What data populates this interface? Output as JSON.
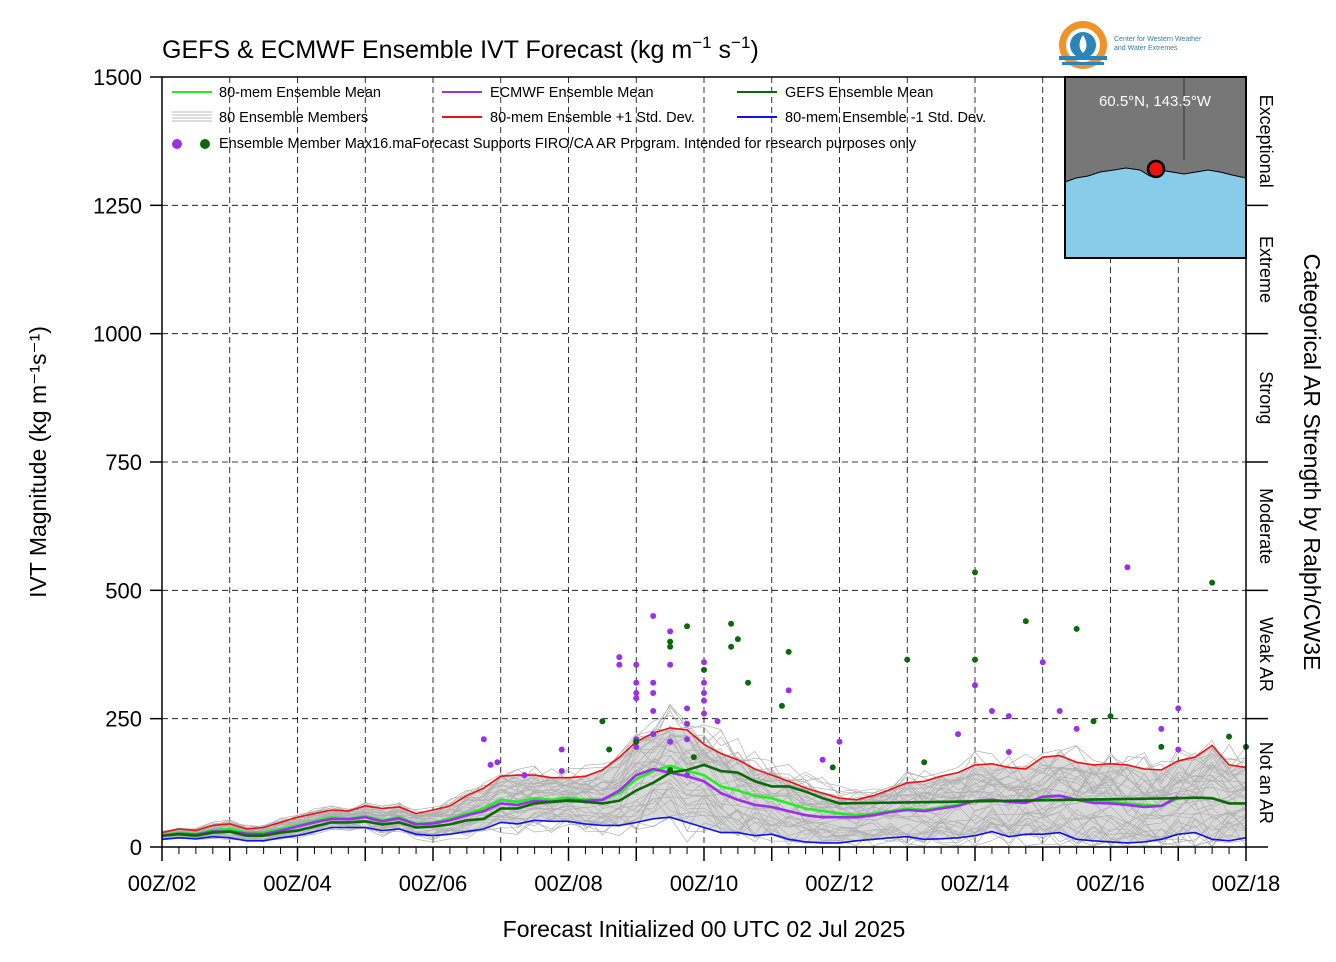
{
  "chart_data": {
    "type": "line",
    "title_prefix": "GEFS & ECMWF Ensemble IVT Forecast (kg m",
    "title_sup1": "−1",
    "title_mid": " s",
    "title_sup2": "−1",
    "title_suffix": ")",
    "xlabel": "Forecast Initialized 00 UTC 02 Jul 2025",
    "ylabel": "IVT Magnitude (kg m⁻¹s⁻¹)",
    "right_label": "Categorical AR Strength by Ralph/CW3E",
    "ylim": [
      0,
      1500
    ],
    "xlim_days": [
      2,
      18
    ],
    "yticks": [
      "0",
      "250",
      "500",
      "750",
      "1000",
      "1250",
      "1500"
    ],
    "xticks": [
      "00Z/02",
      "00Z/04",
      "00Z/06",
      "00Z/08",
      "00Z/10",
      "00Z/12",
      "00Z/14",
      "00Z/16",
      "00Z/18"
    ],
    "categories": [
      {
        "label": "Not an AR",
        "range": [
          0,
          250
        ]
      },
      {
        "label": "Weak AR",
        "range": [
          250,
          500
        ]
      },
      {
        "label": "Moderate",
        "range": [
          500,
          750
        ]
      },
      {
        "label": "Strong",
        "range": [
          750,
          1000
        ]
      },
      {
        "label": "Extreme",
        "range": [
          1000,
          1250
        ]
      },
      {
        "label": "Exceptional",
        "range": [
          1250,
          1500
        ]
      }
    ],
    "grid": true,
    "legend_position": "top-left",
    "legend": [
      {
        "label": "80-mem Ensemble Mean",
        "color": "#22ee22"
      },
      {
        "label": "ECMWF Ensemble Mean",
        "color": "#9b30e8"
      },
      {
        "label": "GEFS Ensemble Mean",
        "color": "#0a6a0a"
      },
      {
        "label": "80 Ensemble Members",
        "color": "#aaaaaa"
      },
      {
        "label": "80-mem Ensemble +1 Std. Dev.",
        "color": "#ee1111"
      },
      {
        "label": "80-mem Ensemble -1 Std. Dev.",
        "color": "#1111ee"
      },
      {
        "label": "Ensemble Member Max",
        "color": "#9b30e8"
      }
    ],
    "note": "16.maForecast Supports FIRO/CA AR Program. Intended for research purposes only",
    "inset_label": "60.5°N, 143.5°W",
    "logo_text_1": "Center for Western Weather",
    "logo_text_2": "and Water Extremes",
    "series": [
      {
        "name": "80-mem Ensemble Mean",
        "color": "#22ee22",
        "x": [
          2.0,
          2.25,
          2.5,
          2.75,
          3.0,
          3.25,
          3.5,
          3.75,
          4.0,
          4.25,
          4.5,
          4.75,
          5.0,
          5.25,
          5.5,
          5.75,
          6.0,
          6.25,
          6.5,
          6.75,
          7.0,
          7.25,
          7.5,
          7.75,
          8.0,
          8.25,
          8.5,
          8.75,
          9.0,
          9.25,
          9.5,
          9.75,
          10.0,
          10.25,
          10.5,
          10.75,
          11.0,
          11.25,
          11.5,
          11.75,
          12.0,
          12.25,
          12.5,
          12.75,
          13.0,
          13.25,
          13.5,
          13.75,
          14.0,
          14.25,
          14.5,
          14.75,
          15.0,
          15.25,
          15.5,
          15.75,
          16.0,
          16.25,
          16.5,
          16.75,
          17.0
        ],
        "y": [
          22,
          28,
          25,
          33,
          35,
          28,
          28,
          35,
          42,
          50,
          58,
          55,
          60,
          52,
          58,
          45,
          48,
          55,
          65,
          75,
          92,
          88,
          95,
          92,
          96,
          92,
          92,
          105,
          132,
          148,
          158,
          148,
          140,
          118,
          110,
          100,
          95,
          85,
          75,
          70,
          65,
          62,
          65,
          70,
          75,
          72,
          78,
          82,
          90,
          92,
          88,
          87,
          95,
          100,
          92,
          88,
          88,
          85,
          82,
          80,
          95
        ]
      },
      {
        "name": "ECMWF Ensemble Mean",
        "color": "#9b30e8",
        "x": [
          2.0,
          2.25,
          2.5,
          2.75,
          3.0,
          3.25,
          3.5,
          3.75,
          4.0,
          4.25,
          4.5,
          4.75,
          5.0,
          5.25,
          5.5,
          5.75,
          6.0,
          6.25,
          6.5,
          6.75,
          7.0,
          7.25,
          7.5,
          7.75,
          8.0,
          8.25,
          8.5,
          8.75,
          9.0,
          9.25,
          9.5,
          9.75,
          10.0,
          10.25,
          10.5,
          10.75,
          11.0,
          11.25,
          11.5,
          11.75,
          12.0,
          12.25,
          12.5,
          12.75,
          13.0,
          13.25,
          13.5,
          13.75,
          14.0,
          14.25,
          14.5,
          14.75,
          15.0,
          15.25,
          15.5,
          15.75,
          16.0,
          16.25,
          16.5,
          16.75,
          17.0
        ],
        "y": [
          22,
          26,
          24,
          30,
          30,
          26,
          25,
          32,
          40,
          48,
          55,
          54,
          58,
          50,
          56,
          44,
          46,
          52,
          62,
          70,
          85,
          82,
          90,
          88,
          92,
          90,
          92,
          110,
          140,
          152,
          145,
          138,
          128,
          105,
          92,
          82,
          78,
          70,
          62,
          58,
          58,
          58,
          62,
          68,
          72,
          70,
          75,
          80,
          90,
          92,
          88,
          86,
          98,
          100,
          92,
          86,
          85,
          82,
          78,
          80,
          98
        ]
      },
      {
        "name": "GEFS Ensemble Mean",
        "color": "#0a6a0a",
        "x": [
          2.0,
          2.25,
          2.5,
          2.75,
          3.0,
          3.25,
          3.5,
          3.75,
          4.0,
          4.25,
          4.5,
          4.75,
          5.0,
          5.25,
          5.5,
          5.75,
          6.0,
          6.25,
          6.5,
          6.75,
          7.0,
          7.25,
          7.5,
          7.75,
          8.0,
          8.25,
          8.5,
          8.75,
          9.0,
          9.25,
          9.5,
          9.75,
          10.0,
          10.25,
          10.5,
          10.75,
          11.0,
          11.25,
          11.5,
          11.75,
          12.0,
          17.0,
          17.25,
          17.5,
          17.75,
          18.0
        ],
        "y": [
          22,
          25,
          22,
          28,
          30,
          22,
          22,
          28,
          32,
          40,
          48,
          48,
          50,
          44,
          48,
          38,
          40,
          44,
          52,
          55,
          75,
          75,
          85,
          88,
          90,
          88,
          85,
          90,
          110,
          125,
          145,
          150,
          160,
          148,
          145,
          128,
          118,
          118,
          108,
          95,
          85,
          95,
          96,
          95,
          85,
          85
        ]
      },
      {
        "name": "80-mem Ensemble +1 Std. Dev.",
        "color": "#ee1111",
        "x": [
          2.0,
          2.25,
          2.5,
          2.75,
          3.0,
          3.25,
          3.5,
          3.75,
          4.0,
          4.25,
          4.5,
          4.75,
          5.0,
          5.25,
          5.5,
          5.75,
          6.0,
          6.25,
          6.5,
          6.75,
          7.0,
          7.25,
          7.5,
          7.75,
          8.0,
          8.25,
          8.5,
          8.75,
          9.0,
          9.25,
          9.5,
          9.75,
          10.0,
          10.25,
          10.5,
          10.75,
          11.0,
          11.25,
          11.5,
          11.75,
          12.0,
          12.25,
          12.5,
          12.75,
          13.0,
          13.25,
          13.5,
          13.75,
          14.0,
          14.25,
          14.5,
          14.75,
          15.0,
          15.25,
          15.5,
          15.75,
          16.0,
          16.25,
          16.5,
          16.75,
          17.0,
          17.25,
          17.5,
          17.75,
          18.0
        ],
        "y": [
          28,
          35,
          32,
          42,
          45,
          35,
          38,
          48,
          58,
          65,
          72,
          70,
          80,
          75,
          78,
          65,
          72,
          80,
          100,
          115,
          138,
          140,
          140,
          135,
          135,
          138,
          150,
          175,
          205,
          222,
          232,
          228,
          200,
          182,
          170,
          152,
          140,
          128,
          115,
          105,
          95,
          92,
          100,
          112,
          125,
          128,
          138,
          145,
          160,
          162,
          155,
          152,
          175,
          178,
          165,
          160,
          162,
          160,
          152,
          150,
          168,
          175,
          198,
          160,
          155
        ]
      },
      {
        "name": "80-mem Ensemble -1 Std. Dev.",
        "color": "#1111ee",
        "x": [
          2.0,
          2.25,
          2.5,
          2.75,
          3.0,
          3.25,
          3.5,
          3.75,
          4.0,
          4.25,
          4.5,
          4.75,
          5.0,
          5.25,
          5.5,
          5.75,
          6.0,
          6.25,
          6.5,
          6.75,
          7.0,
          7.25,
          7.5,
          7.75,
          8.0,
          8.25,
          8.5,
          8.75,
          9.0,
          9.25,
          9.5,
          9.75,
          10.0,
          10.25,
          10.5,
          10.75,
          11.0,
          11.25,
          11.5,
          11.75,
          12.0,
          12.25,
          12.5,
          12.75,
          13.0,
          13.25,
          13.5,
          13.75,
          14.0,
          14.25,
          14.5,
          14.75,
          15.0,
          15.25,
          15.5,
          15.75,
          16.0,
          16.25,
          16.5,
          16.75,
          17.0,
          17.25,
          17.5,
          17.75,
          18.0
        ],
        "y": [
          15,
          18,
          16,
          20,
          18,
          12,
          12,
          18,
          22,
          30,
          38,
          38,
          38,
          32,
          35,
          25,
          22,
          25,
          30,
          35,
          48,
          45,
          52,
          50,
          50,
          45,
          42,
          42,
          48,
          55,
          58,
          48,
          38,
          28,
          28,
          22,
          25,
          15,
          10,
          8,
          8,
          12,
          15,
          18,
          20,
          15,
          16,
          18,
          22,
          30,
          20,
          25,
          25,
          28,
          15,
          12,
          10,
          8,
          10,
          15,
          25,
          28,
          15,
          12,
          18
        ]
      }
    ],
    "member_max_ecmwf": [
      {
        "x": 6.75,
        "y": 210
      },
      {
        "x": 6.85,
        "y": 160
      },
      {
        "x": 6.95,
        "y": 165
      },
      {
        "x": 7.35,
        "y": 140
      },
      {
        "x": 7.9,
        "y": 148
      },
      {
        "x": 7.9,
        "y": 190
      },
      {
        "x": 8.75,
        "y": 370
      },
      {
        "x": 8.75,
        "y": 355
      },
      {
        "x": 9.0,
        "y": 355
      },
      {
        "x": 9.0,
        "y": 320
      },
      {
        "x": 9.0,
        "y": 300
      },
      {
        "x": 9.0,
        "y": 290
      },
      {
        "x": 9.0,
        "y": 210
      },
      {
        "x": 9.0,
        "y": 195
      },
      {
        "x": 9.25,
        "y": 450
      },
      {
        "x": 9.25,
        "y": 320
      },
      {
        "x": 9.25,
        "y": 300
      },
      {
        "x": 9.25,
        "y": 265
      },
      {
        "x": 9.25,
        "y": 220
      },
      {
        "x": 9.5,
        "y": 420
      },
      {
        "x": 9.5,
        "y": 355
      },
      {
        "x": 9.5,
        "y": 205
      },
      {
        "x": 9.75,
        "y": 270
      },
      {
        "x": 9.75,
        "y": 240
      },
      {
        "x": 9.75,
        "y": 210
      },
      {
        "x": 9.75,
        "y": 140
      },
      {
        "x": 10.0,
        "y": 360
      },
      {
        "x": 10.0,
        "y": 320
      },
      {
        "x": 10.0,
        "y": 300
      },
      {
        "x": 10.0,
        "y": 285
      },
      {
        "x": 10.0,
        "y": 260
      },
      {
        "x": 10.2,
        "y": 245
      },
      {
        "x": 11.25,
        "y": 305
      },
      {
        "x": 11.75,
        "y": 170
      },
      {
        "x": 12.0,
        "y": 205
      },
      {
        "x": 13.75,
        "y": 220
      },
      {
        "x": 14.0,
        "y": 315
      },
      {
        "x": 14.25,
        "y": 265
      },
      {
        "x": 14.5,
        "y": 255
      },
      {
        "x": 14.5,
        "y": 185
      },
      {
        "x": 15.0,
        "y": 360
      },
      {
        "x": 15.25,
        "y": 265
      },
      {
        "x": 15.5,
        "y": 230
      },
      {
        "x": 16.25,
        "y": 545
      },
      {
        "x": 16.75,
        "y": 230
      },
      {
        "x": 17.0,
        "y": 270
      },
      {
        "x": 17.0,
        "y": 190
      }
    ],
    "member_max_gefs": [
      {
        "x": 8.5,
        "y": 245
      },
      {
        "x": 8.6,
        "y": 190
      },
      {
        "x": 9.0,
        "y": 205
      },
      {
        "x": 9.5,
        "y": 400
      },
      {
        "x": 9.5,
        "y": 390
      },
      {
        "x": 9.5,
        "y": 150
      },
      {
        "x": 9.75,
        "y": 430
      },
      {
        "x": 9.85,
        "y": 175
      },
      {
        "x": 10.0,
        "y": 345
      },
      {
        "x": 10.4,
        "y": 435
      },
      {
        "x": 10.4,
        "y": 390
      },
      {
        "x": 10.5,
        "y": 405
      },
      {
        "x": 10.65,
        "y": 320
      },
      {
        "x": 11.15,
        "y": 275
      },
      {
        "x": 11.25,
        "y": 380
      },
      {
        "x": 11.9,
        "y": 155
      },
      {
        "x": 13.0,
        "y": 365
      },
      {
        "x": 13.25,
        "y": 165
      },
      {
        "x": 14.0,
        "y": 535
      },
      {
        "x": 14.0,
        "y": 365
      },
      {
        "x": 14.75,
        "y": 440
      },
      {
        "x": 15.5,
        "y": 425
      },
      {
        "x": 15.75,
        "y": 245
      },
      {
        "x": 16.0,
        "y": 255
      },
      {
        "x": 16.75,
        "y": 195
      },
      {
        "x": 17.5,
        "y": 515
      },
      {
        "x": 17.75,
        "y": 215
      },
      {
        "x": 18.0,
        "y": 195
      }
    ]
  }
}
